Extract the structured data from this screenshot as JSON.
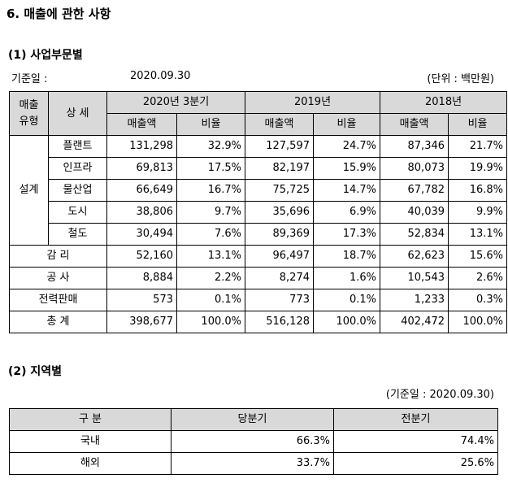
{
  "section_title": "6. 매출에 관한 사항",
  "part1": {
    "heading": "(1) 사업부문별",
    "base_date_label": "기준일 :",
    "base_date_value": "2020.09.30",
    "unit": "(단위 : 백만원)",
    "header": {
      "col1_line1": "매출",
      "col1_line2": "유형",
      "col2": "상 세",
      "periods": [
        "2020년 3분기",
        "2019년",
        "2018년"
      ],
      "amount": "매출액",
      "ratio": "비율"
    },
    "group_label": "설계",
    "design_rows": [
      {
        "name": "플랜트",
        "v": [
          "131,298",
          "32.9%",
          "127,597",
          "24.7%",
          "87,346",
          "21.7%"
        ]
      },
      {
        "name": "인프라",
        "v": [
          "69,813",
          "17.5%",
          "82,197",
          "15.9%",
          "80,073",
          "19.9%"
        ]
      },
      {
        "name": "물산업",
        "v": [
          "66,649",
          "16.7%",
          "75,725",
          "14.7%",
          "67,782",
          "16.8%"
        ]
      },
      {
        "name": "도시",
        "v": [
          "38,806",
          "9.7%",
          "35,696",
          "6.9%",
          "40,039",
          "9.9%"
        ]
      },
      {
        "name": "철도",
        "v": [
          "30,494",
          "7.6%",
          "89,369",
          "17.3%",
          "52,834",
          "13.1%"
        ]
      }
    ],
    "other_rows": [
      {
        "name": "감 리",
        "v": [
          "52,160",
          "13.1%",
          "96,497",
          "18.7%",
          "62,623",
          "15.6%"
        ]
      },
      {
        "name": "공 사",
        "v": [
          "8,884",
          "2.2%",
          "8,274",
          "1.6%",
          "10,543",
          "2.6%"
        ]
      },
      {
        "name": "전력판매",
        "v": [
          "573",
          "0.1%",
          "773",
          "0.1%",
          "1,233",
          "0.3%"
        ]
      },
      {
        "name": "총 계",
        "v": [
          "398,677",
          "100.0%",
          "516,128",
          "100.0%",
          "402,472",
          "100.0%"
        ]
      }
    ]
  },
  "part2": {
    "heading": "(2) 지역별",
    "base_date": "(기준일 : 2020.09.30)",
    "header": [
      "구  분",
      "당분기",
      "전분기"
    ],
    "rows": [
      {
        "name": "국내",
        "current": "66.3%",
        "previous": "74.4%"
      },
      {
        "name": "해외",
        "current": "33.7%",
        "previous": "25.6%"
      }
    ]
  }
}
